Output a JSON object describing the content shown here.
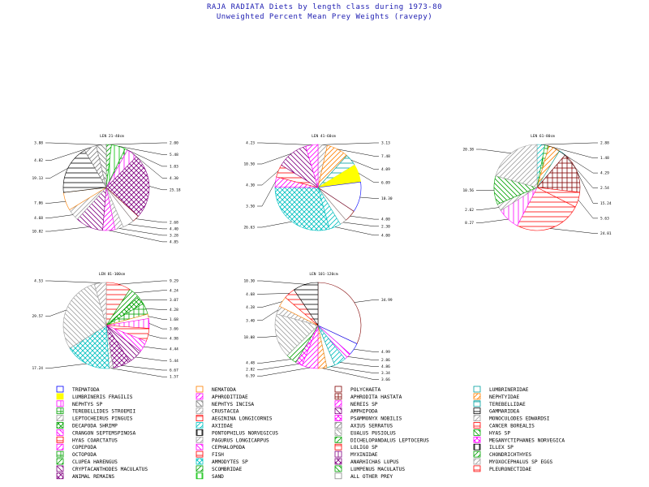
{
  "header": {
    "title": "RAJA RADIATA Diets by length class during 1973-80",
    "subtitle": "Unweighted Percent Mean Prey Weights (ravepy)"
  },
  "legend_items": [
    {
      "label": "TREMATODA",
      "color": "#0000ff",
      "pattern": "solid-light"
    },
    {
      "label": "LUMBRINERIS FRAGILIS",
      "color": "#ffff00",
      "pattern": "solid"
    },
    {
      "label": "NEPHTYS SP",
      "color": "#ff00ff",
      "pattern": "vert"
    },
    {
      "label": "TEREBELLIDES STROEMII",
      "color": "#00a000",
      "pattern": "grid"
    },
    {
      "label": "LEPTOCHEIRUS PINGUIS",
      "color": "#a0a0a0",
      "pattern": "diag"
    },
    {
      "label": "DECAPODA SHRIMP",
      "color": "#00a000",
      "pattern": "cross"
    },
    {
      "label": "CRANGON SEPTEMSPINOSA",
      "color": "#ff00ff",
      "pattern": "anti"
    },
    {
      "label": "HYAS COARCTATUS",
      "color": "#ff0000",
      "pattern": "horiz"
    },
    {
      "label": "COPEPODA",
      "color": "#ff00ff",
      "pattern": "diag"
    },
    {
      "label": "OCTOPODA",
      "color": "#00a000",
      "pattern": "grid"
    },
    {
      "label": "CLUPEA HARENGUS",
      "color": "#00a000",
      "pattern": "diag"
    },
    {
      "label": "CRYPTACANTHODES MACULATUS",
      "color": "#800080",
      "pattern": "anti"
    },
    {
      "label": "ANIMAL REMAINS",
      "color": "#800080",
      "pattern": "cross"
    },
    {
      "label": "NEMATODA",
      "color": "#ff8000",
      "pattern": "solid-light"
    },
    {
      "label": "APHRODITIDAE",
      "color": "#ff00ff",
      "pattern": "diag"
    },
    {
      "label": "NEPHTYS INCISA",
      "color": "#808080",
      "pattern": "anti"
    },
    {
      "label": "CRUSTACEA",
      "color": "#a0a0a0",
      "pattern": "diag"
    },
    {
      "label": "AEGININA LONGICORNIS",
      "color": "#ff0000",
      "pattern": "horiz"
    },
    {
      "label": "AXIIDAE",
      "color": "#00c0c0",
      "pattern": "diag"
    },
    {
      "label": "PONTOPHILUS NORVEGICUS",
      "color": "#000000",
      "pattern": "vert"
    },
    {
      "label": "PAGURUS LONGICARPUS",
      "color": "#a0a0a0",
      "pattern": "diag"
    },
    {
      "label": "CEPHALOPODA",
      "color": "#ff00ff",
      "pattern": "anti"
    },
    {
      "label": "FISH",
      "color": "#ff0000",
      "pattern": "horiz"
    },
    {
      "label": "AMMODYTES SP",
      "color": "#00c0c0",
      "pattern": "cross"
    },
    {
      "label": "SCOMBRIDAE",
      "color": "#00a000",
      "pattern": "diag"
    },
    {
      "label": "SAND",
      "color": "#00c000",
      "pattern": "vert"
    },
    {
      "label": "POLYCHAETA",
      "color": "#800000",
      "pattern": "solid-light"
    },
    {
      "label": "APHRODITA HASTATA",
      "color": "#800000",
      "pattern": "grid"
    },
    {
      "label": "NEREIS SP",
      "color": "#ff00ff",
      "pattern": "diag"
    },
    {
      "label": "AMPHIPODA",
      "color": "#800080",
      "pattern": "anti"
    },
    {
      "label": "PSAMMONYX NOBILIS",
      "color": "#ff00ff",
      "pattern": "cross"
    },
    {
      "label": "AXIUS SERRATUS",
      "color": "#808080",
      "pattern": "diag"
    },
    {
      "label": "EUALUS PUSIOLUS",
      "color": "#a0a0a0",
      "pattern": "anti"
    },
    {
      "label": "DICHELOPANDALUS LEPTOCERUS",
      "color": "#00a000",
      "pattern": "diag"
    },
    {
      "label": "LOLIGO SP",
      "color": "#ff0000",
      "pattern": "horiz"
    },
    {
      "label": "MYXINIDAE",
      "color": "#800080",
      "pattern": "vert"
    },
    {
      "label": "ANARHICHAS LUPUS",
      "color": "#800080",
      "pattern": "cross"
    },
    {
      "label": "LUMPENUS MACULATUS",
      "color": "#00a000",
      "pattern": "anti"
    },
    {
      "label": "ALL OTHER PREY",
      "color": "#ffffff",
      "pattern": "solid-light"
    },
    {
      "label": "LUMBRINERIDAE",
      "color": "#00a0a0",
      "pattern": "solid-light"
    },
    {
      "label": "NEPHTYIDAE",
      "color": "#ff8000",
      "pattern": "diag"
    },
    {
      "label": "TEREBELLIDAE",
      "color": "#00a0a0",
      "pattern": "horiz"
    },
    {
      "label": "GAMMARIDEA",
      "color": "#000000",
      "pattern": "horiz"
    },
    {
      "label": "MONOCULODES EDWARDSI",
      "color": "#a0a0a0",
      "pattern": "diag"
    },
    {
      "label": "CANCER BOREALIS",
      "color": "#ff0000",
      "pattern": "horiz"
    },
    {
      "label": "HYAS SP",
      "color": "#00a000",
      "pattern": "anti"
    },
    {
      "label": "MEGANYCTIPHANES NORVEGICA",
      "color": "#ff00ff",
      "pattern": "cross"
    },
    {
      "label": "ILLEX SP",
      "color": "#000000",
      "pattern": "vert"
    },
    {
      "label": "CHONDRICHTHYES",
      "color": "#00a000",
      "pattern": "diag"
    },
    {
      "label": "MYOXOCEPHALUS SP EGGS",
      "color": "#a0a0a0",
      "pattern": "diag"
    },
    {
      "label": "PLEURONECTIDAE",
      "color": "#ff0000",
      "pattern": "horiz"
    }
  ],
  "chart_data": [
    {
      "type": "pie",
      "title": "LEN 21-40cm",
      "slices": [
        {
          "label": "CLUPEA HARENGUS",
          "value": 2.0
        },
        {
          "label": "SAND",
          "value": 5.48
        },
        {
          "label": "TEREBELLIDES STROEMII",
          "value": 1.03
        },
        {
          "label": "NEPHTYS SP",
          "value": 4.3
        },
        {
          "label": "ANIMAL REMAINS",
          "value": 25.18
        },
        {
          "label": "POLYCHAETA",
          "value": 2.68
        },
        {
          "label": "ALL OTHER PREY",
          "value": 4.4
        },
        {
          "label": "CRUSTACEA",
          "value": 3.28
        },
        {
          "label": "COPEPODA",
          "value": 4.85
        },
        {
          "label": "CRYPTACANTHODES MACULATUS",
          "value": 10.82
        },
        {
          "label": "LEPTOCHEIRUS PINGUIS",
          "value": 4.68
        },
        {
          "label": "NEMATODA",
          "value": 7.06
        },
        {
          "label": "GAMMARIDEA",
          "value": 19.13
        },
        {
          "label": "AXIUS SERRATUS",
          "value": 4.82
        },
        {
          "label": "NEPHTYS INCISA",
          "value": 3.88
        }
      ]
    },
    {
      "type": "pie",
      "title": "LEN 41-60cm",
      "slices": [
        {
          "label": "CRUSTACEA",
          "value": 3.13
        },
        {
          "label": "NEPHTYIDAE",
          "value": 7.48
        },
        {
          "label": "TEREBELLIDAE",
          "value": 4.09
        },
        {
          "label": "LUMBRINERIS FRAGILIS",
          "value": 6.09
        },
        {
          "label": "TREMATODA",
          "value": 10.3
        },
        {
          "label": "POLYCHAETA",
          "value": 4.0
        },
        {
          "label": "ALL OTHER PREY",
          "value": 2.3
        },
        {
          "label": "AXIIDAE",
          "value": 4.0
        },
        {
          "label": "AMMODYTES SP",
          "value": 26.63
        },
        {
          "label": "COPEPODA",
          "value": 3.5
        },
        {
          "label": "FISH",
          "value": 4.3
        },
        {
          "label": "CRYPTACANTHODES MACULATUS",
          "value": 10.5
        },
        {
          "label": "NEREIS SP",
          "value": 4.23
        }
      ]
    },
    {
      "type": "pie",
      "title": "LEN 61-80cm",
      "slices": [
        {
          "label": "AXIIDAE",
          "value": 2.88
        },
        {
          "label": "TEREBELLIDES STROEMII",
          "value": 1.48
        },
        {
          "label": "NEPHTYIDAE",
          "value": 4.29
        },
        {
          "label": "LUMBRINERIDAE",
          "value": 2.54
        },
        {
          "label": "APHRODITA HASTATA",
          "value": 15.24
        },
        {
          "label": "CANCER BOREALIS",
          "value": 5.63
        },
        {
          "label": "PLEURONECTIDAE",
          "value": 24.81
        },
        {
          "label": "NEPHTYS SP",
          "value": 8.27
        },
        {
          "label": "CRUSTACEA",
          "value": 2.62
        },
        {
          "label": "HYAS SP",
          "value": 10.56
        },
        {
          "label": "MONOCULODES EDWARDSI",
          "value": 20.38
        }
      ]
    },
    {
      "type": "pie",
      "title": "LEN 81-100cm",
      "slices": [
        {
          "label": "FISH",
          "value": 9.29
        },
        {
          "label": "SCOMBRIDAE",
          "value": 4.24
        },
        {
          "label": "DECAPODA SHRIMP",
          "value": 3.07
        },
        {
          "label": "OCTOPODA",
          "value": 4.28
        },
        {
          "label": "NEMATODA",
          "value": 1.68
        },
        {
          "label": "NEPHTYS SP",
          "value": 3.66
        },
        {
          "label": "LOLIGO SP",
          "value": 4.98
        },
        {
          "label": "CEPHALOPODA",
          "value": 4.44
        },
        {
          "label": "AMPHIPODA",
          "value": 5.44
        },
        {
          "label": "ANIMAL REMAINS",
          "value": 6.67
        },
        {
          "label": "PAGURUS LONGICARPUS",
          "value": 1.57
        },
        {
          "label": "AMMODYTES SP",
          "value": 17.24
        },
        {
          "label": "EUALUS PUSIOLUS",
          "value": 29.57
        },
        {
          "label": "CRUSTACEA",
          "value": 4.53
        }
      ]
    },
    {
      "type": "pie",
      "title": "LEN 101-120cm",
      "slices": [
        {
          "label": "POLYCHAETA",
          "value": 34.99
        },
        {
          "label": "TREMATODA",
          "value": 4.99
        },
        {
          "label": "CEPHALOPODA",
          "value": 2.86
        },
        {
          "label": "AXIIDAE",
          "value": 4.86
        },
        {
          "label": "LUMBRINERIDAE",
          "value": 3.34
        },
        {
          "label": "NEPHTYIDAE",
          "value": 3.66
        },
        {
          "label": "COPEPODA",
          "value": 6.59
        },
        {
          "label": "PSAMMONYX NOBILIS",
          "value": 2.82
        },
        {
          "label": "DICHELOPANDALUS LEPTOCERUS",
          "value": 4.48
        },
        {
          "label": "EUALUS PUSIOLUS",
          "value": 18.08
        },
        {
          "label": "CRUSTACEA",
          "value": 3.4
        },
        {
          "label": "NEMATODA",
          "value": 4.28
        },
        {
          "label": "PLEURONECTIDAE",
          "value": 4.68
        },
        {
          "label": "GAMMARIDEA",
          "value": 10.3
        }
      ]
    }
  ]
}
